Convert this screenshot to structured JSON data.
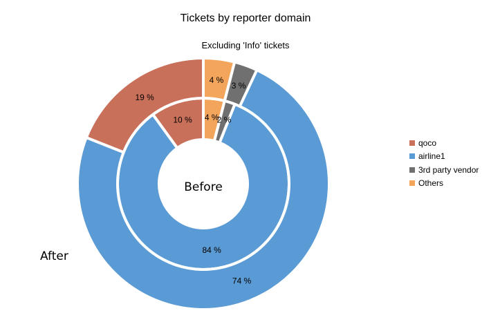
{
  "chart_data": {
    "type": "pie",
    "subtype": "doughnut-two-rings",
    "title": "Tickets by reporter domain",
    "subtitle": "Excluding 'Info' tickets",
    "categories": [
      "qoco",
      "airline1",
      "3rd party vendor",
      "Others"
    ],
    "colors": {
      "qoco": "#c9705a",
      "airline1": "#5b9bd5",
      "3rd party vendor": "#707070",
      "Others": "#f4a55c"
    },
    "series": [
      {
        "name": "Before",
        "ring": "inner",
        "values": [
          10,
          84,
          2,
          4
        ],
        "labels": [
          "10 %",
          "84 %",
          "2 %",
          "4 %"
        ]
      },
      {
        "name": "After",
        "ring": "outer",
        "values": [
          19,
          74,
          3,
          4
        ],
        "labels": [
          "19 %",
          "74 %",
          "3 %",
          "4 %"
        ]
      }
    ],
    "legend": {
      "position": "right",
      "entries": [
        "qoco",
        "airline1",
        "3rd party vendor",
        "Others"
      ]
    }
  }
}
